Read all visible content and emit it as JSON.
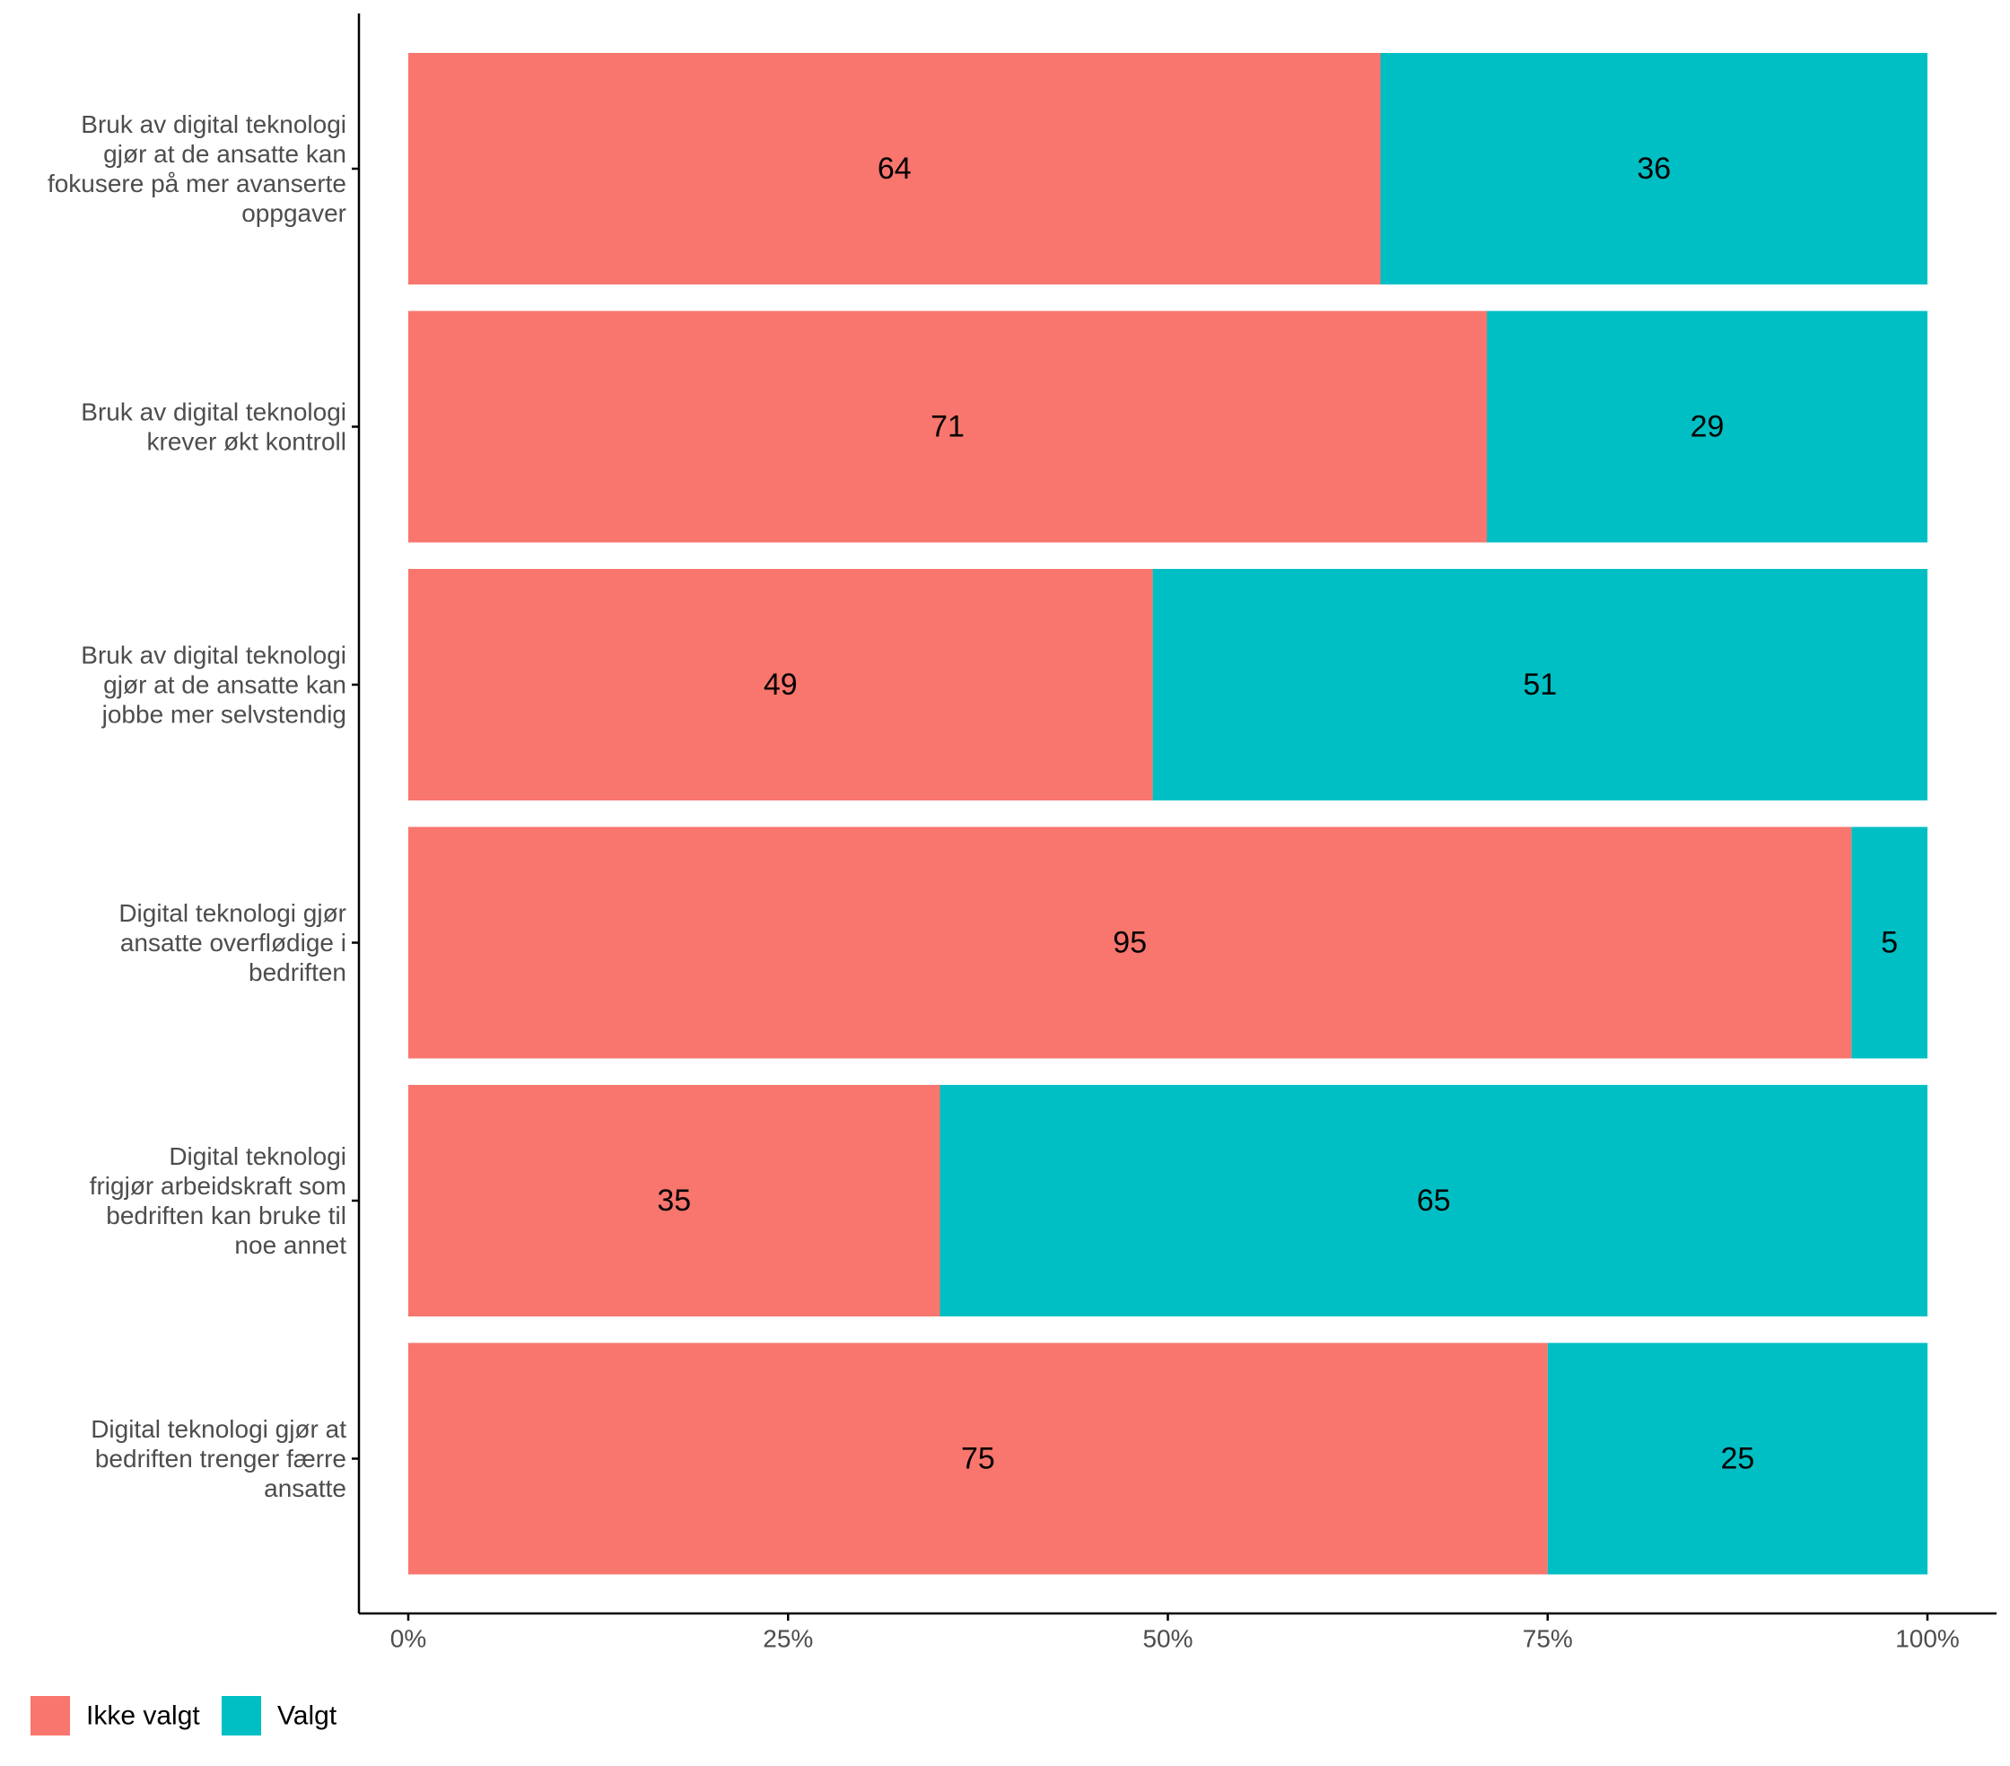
{
  "chart_data": {
    "type": "bar",
    "orientation": "horizontal",
    "stacked": "percent",
    "categories": [
      [
        "Bruk av digital teknologi",
        "gjør at de ansatte kan",
        "fokusere på mer avanserte",
        "oppgaver"
      ],
      [
        "Bruk av digital teknologi",
        "krever økt kontroll"
      ],
      [
        "Bruk av digital teknologi",
        "gjør at de ansatte kan",
        "jobbe mer selvstendig"
      ],
      [
        "Digital teknologi gjør",
        "ansatte overflødige i",
        "bedriften"
      ],
      [
        "Digital teknologi",
        "frigjør arbeidskraft som",
        "bedriften kan bruke til",
        "noe annet"
      ],
      [
        "Digital teknologi gjør at",
        "bedriften trenger færre",
        "ansatte"
      ]
    ],
    "series": [
      {
        "name": "Ikke valgt",
        "color": "#F8766D",
        "values": [
          64,
          71,
          49,
          95,
          35,
          75
        ]
      },
      {
        "name": "Valgt",
        "color": "#00BFC4",
        "values": [
          36,
          29,
          51,
          5,
          65,
          25
        ]
      }
    ],
    "data_labels": {
      "Ikke valgt": [
        "64",
        "71",
        "49",
        "95",
        "35",
        "75"
      ],
      "Valgt": [
        "36",
        "29",
        "51",
        "5",
        "65",
        "25"
      ]
    },
    "xlim": [
      0,
      1
    ],
    "xticks": [
      0,
      0.25,
      0.5,
      0.75,
      1.0
    ],
    "xtick_labels": [
      "0%",
      "25%",
      "50%",
      "75%",
      "100%"
    ],
    "title": "",
    "xlabel": "",
    "ylabel": "",
    "grid": false,
    "legend_position": "bottom-left"
  }
}
